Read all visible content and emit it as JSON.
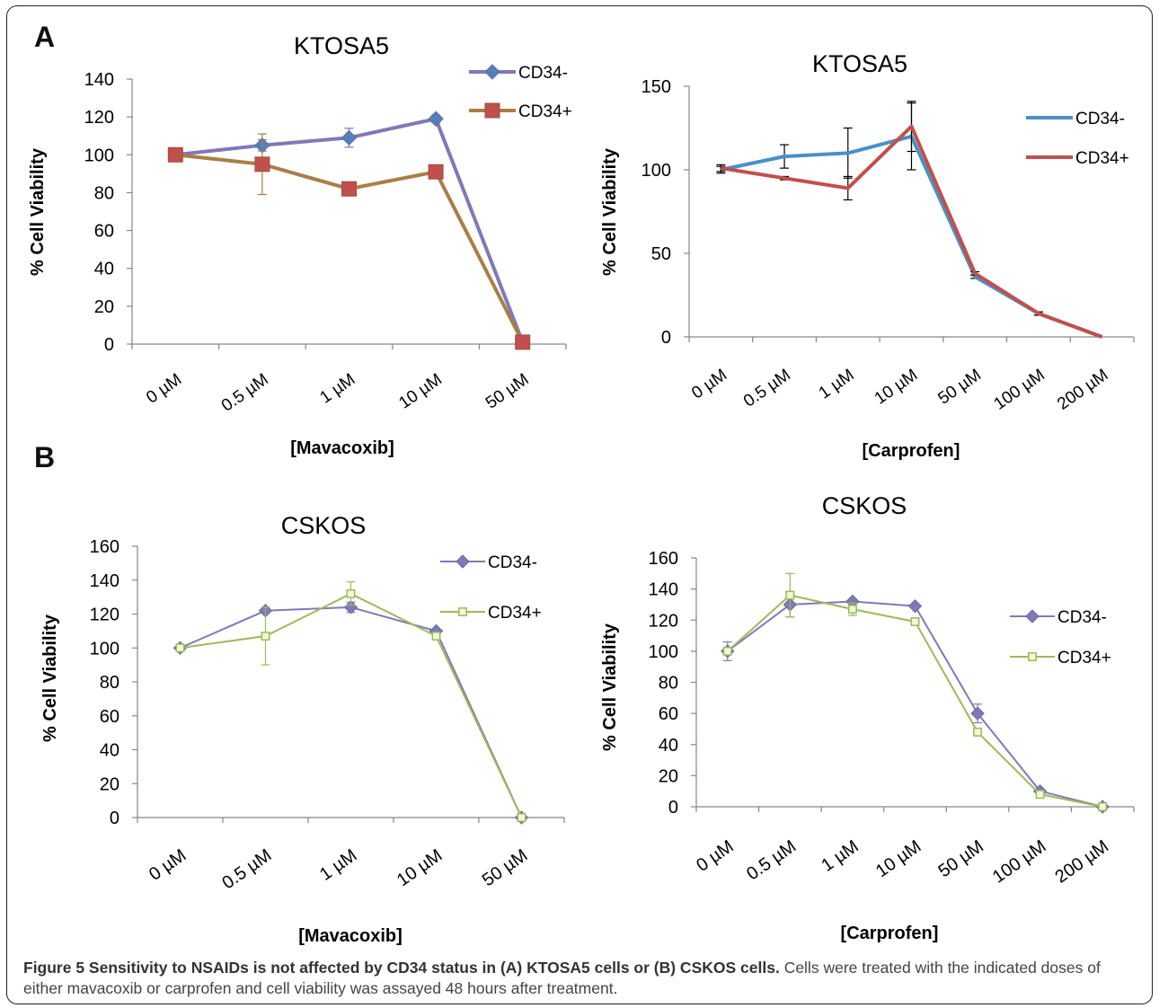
{
  "panel_labels": [
    "A",
    "B"
  ],
  "caption": {
    "bold": "Figure 5 Sensitivity to NSAIDs is not affected by CD34 status in (A) KTOSA5 cells or (B) CSKOS cells.",
    "text": "Cells were treated with the indicated doses of either mavacoxib or carprofen and cell viability was assayed 48 hours after treatment."
  },
  "chart_data": [
    {
      "type": "line",
      "title": "KTOSA5",
      "xlabel": "[Mavacoxib]",
      "ylabel": "% Cell Viability",
      "categories": [
        "0 µM",
        "0.5 µM",
        "1 µM",
        "10 µM",
        "50 µM"
      ],
      "ylim": [
        0,
        140
      ],
      "yticks": [
        0,
        20,
        40,
        60,
        80,
        100,
        120,
        140
      ],
      "legend": "top-right",
      "grid": false,
      "series": [
        {
          "name": "CD34-",
          "values": [
            100,
            105,
            109,
            119,
            1
          ],
          "errors": [
            0,
            3,
            5,
            2,
            0
          ],
          "color": "#8078b8",
          "marker_color": "#4f81bd",
          "marker": "diamond"
        },
        {
          "name": "CD34+",
          "values": [
            100,
            95,
            82,
            91,
            1
          ],
          "errors": [
            0,
            16,
            0,
            0,
            0
          ],
          "color": "#a97e45",
          "marker_color": "#c0504d",
          "marker": "square"
        }
      ]
    },
    {
      "type": "line",
      "title": "KTOSA5",
      "xlabel": "[Carprofen]",
      "ylabel": "% Cell Viability",
      "categories": [
        "0 µM",
        "0.5 µM",
        "1 µM",
        "10 µM",
        "50 µM",
        "100 µM",
        "200 µM"
      ],
      "ylim": [
        0,
        150
      ],
      "yticks": [
        0,
        50,
        100,
        150
      ],
      "legend": "right",
      "grid": false,
      "series": [
        {
          "name": "CD34-",
          "values": [
            100,
            108,
            110,
            120,
            36,
            14,
            0
          ],
          "errors": [
            2,
            7,
            15,
            20,
            1,
            1,
            0
          ],
          "color": "#4a90c8",
          "marker": "none"
        },
        {
          "name": "CD34+",
          "values": [
            101,
            95,
            89,
            126,
            38,
            14,
            0
          ],
          "errors": [
            2,
            1,
            7,
            15,
            1,
            1,
            0
          ],
          "color": "#c0504d",
          "marker": "none"
        }
      ]
    },
    {
      "type": "line",
      "title": "CSKOS",
      "xlabel": "[Mavacoxib]",
      "ylabel": "% Cell Viability",
      "categories": [
        "0 µM",
        "0.5 µM",
        "1 µM",
        "10 µM",
        "50 µM"
      ],
      "ylim": [
        0,
        160
      ],
      "yticks": [
        0,
        20,
        40,
        60,
        80,
        100,
        120,
        140,
        160
      ],
      "legend": "top-right",
      "grid": false,
      "series": [
        {
          "name": "CD34-",
          "values": [
            100,
            122,
            124,
            110,
            0
          ],
          "errors": [
            0,
            0,
            3,
            0,
            0
          ],
          "color": "#8078b8",
          "marker_color": "#8078b8",
          "marker": "diamond"
        },
        {
          "name": "CD34+",
          "values": [
            100,
            107,
            132,
            107,
            0
          ],
          "errors": [
            0,
            17,
            7,
            0,
            0
          ],
          "color": "#9bbb59",
          "marker_color": "#9bbb59",
          "marker": "square-open"
        }
      ]
    },
    {
      "type": "line",
      "title": "CSKOS",
      "xlabel": "[Carprofen]",
      "ylabel": "% Cell Viability",
      "categories": [
        "0 µM",
        "0.5 µM",
        "1 µM",
        "10 µM",
        "50 µM",
        "100 µM",
        "200 µM"
      ],
      "ylim": [
        0,
        160
      ],
      "yticks": [
        0,
        20,
        40,
        60,
        80,
        100,
        120,
        140,
        160
      ],
      "legend": "right",
      "grid": false,
      "series": [
        {
          "name": "CD34-",
          "values": [
            100,
            130,
            132,
            129,
            60,
            10,
            0
          ],
          "errors": [
            6,
            8,
            0,
            0,
            6,
            0,
            0
          ],
          "color": "#8078b8",
          "marker_color": "#8078b8",
          "marker": "diamond"
        },
        {
          "name": "CD34+",
          "values": [
            100,
            136,
            127,
            119,
            48,
            8,
            0
          ],
          "errors": [
            0,
            14,
            4,
            0,
            0,
            0,
            0
          ],
          "color": "#9bbb59",
          "marker_color": "#9bbb59",
          "marker": "square-open"
        }
      ]
    }
  ]
}
